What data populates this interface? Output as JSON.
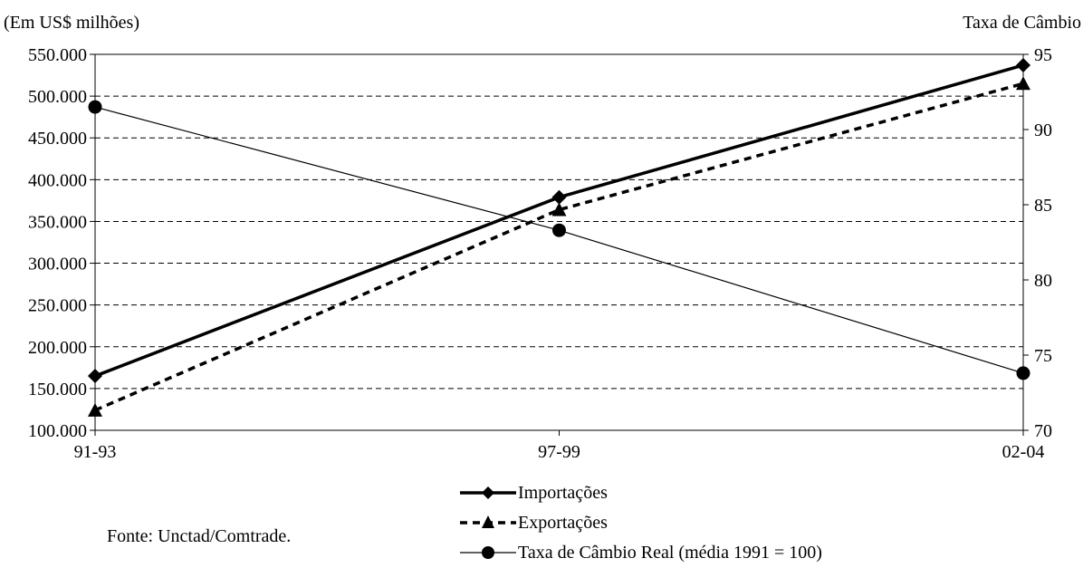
{
  "chart_data": {
    "type": "line",
    "left_axis_title": "(Em US$ milhões)",
    "right_axis_title": "Taxa de Câmbio",
    "categories": [
      "91-93",
      "97-99",
      "02-04"
    ],
    "left_axis": {
      "ylim": [
        100000,
        550000
      ],
      "ticks": [
        "100.000",
        "150.000",
        "200.000",
        "250.000",
        "300.000",
        "350.000",
        "400.000",
        "450.000",
        "500.000",
        "550.000"
      ]
    },
    "right_axis": {
      "ylim": [
        70,
        95
      ],
      "ticks": [
        "70",
        "75",
        "80",
        "85",
        "90",
        "95"
      ]
    },
    "grid": "horizontal dashed",
    "series": [
      {
        "name": "Importações",
        "axis": "left",
        "marker": "diamond",
        "line": "solid-thick",
        "values": [
          165000,
          379000,
          537000
        ]
      },
      {
        "name": "Exportações",
        "axis": "left",
        "marker": "triangle",
        "line": "dashed-thick",
        "values": [
          124000,
          364000,
          515000
        ]
      },
      {
        "name": "Taxa de Câmbio Real (média 1991 = 100)",
        "axis": "right",
        "marker": "circle",
        "line": "solid-thin",
        "values": [
          91.5,
          83.3,
          73.8
        ]
      }
    ],
    "legend_position": "bottom-center",
    "source_note": "Fonte: Unctad/Comtrade."
  }
}
